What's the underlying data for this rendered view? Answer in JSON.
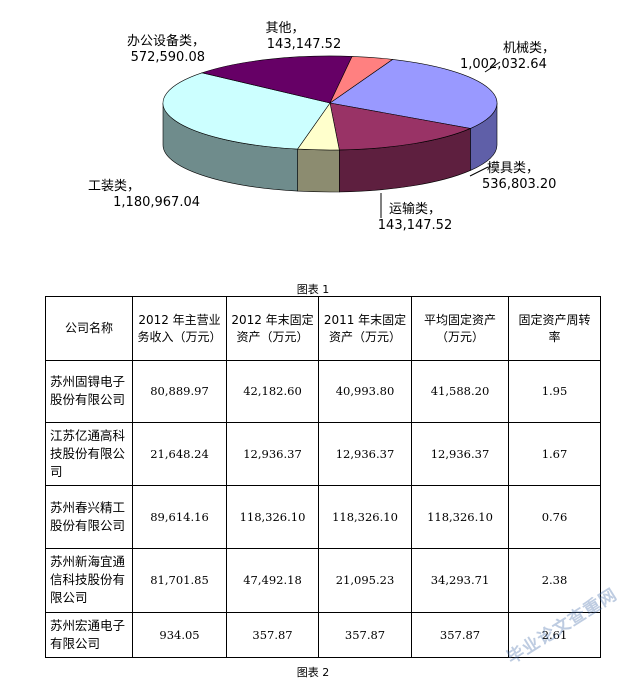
{
  "chart_data": {
    "type": "pie",
    "slices": [
      {
        "label": "机械类",
        "value_text": "1,002,032.64",
        "value": 1002032.64,
        "color": "#9999ff",
        "side": "#5f5fa8"
      },
      {
        "label": "模具类",
        "value_text": "536,803.20",
        "value": 536803.2,
        "color": "#993366",
        "side": "#5e1f3f"
      },
      {
        "label": "运输类",
        "value_text": "143,147.52",
        "value": 143147.52,
        "color": "#ffffcc",
        "side": "#8c8c70"
      },
      {
        "label": "工装类",
        "value_text": "1,180,967.04",
        "value": 1180967.04,
        "color": "#ccffff",
        "side": "#6f8c8c"
      },
      {
        "label": "办公设备类",
        "value_text": "572,590.08",
        "value": 572590.08,
        "color": "#660066",
        "side": "#3a003a"
      },
      {
        "label": "其他",
        "value_text": "143,147.52",
        "value": 143147.52,
        "color": "#ff8080",
        "side": "#8c4646"
      }
    ]
  },
  "captions": {
    "figure1": "图表 1",
    "figure2": "图表 2"
  },
  "table": {
    "headers": [
      "公司名称",
      "2012 年主营业务收入（万元）",
      "2012 年末固定资产（万元）",
      "2011 年末固定资产（万元）",
      "平均固定资产（万元）",
      "固定资产周转率"
    ],
    "rows": [
      [
        "苏州固锝电子股份有限公司",
        "80,889.97",
        "42,182.60",
        "40,993.80",
        "41,588.20",
        "1.95"
      ],
      [
        "江苏亿通高科技股份有限公司",
        "21,648.24",
        "12,936.37",
        "12,936.37",
        "12,936.37",
        "1.67"
      ],
      [
        "苏州春兴精工股份有限公司",
        "89,614.16",
        "118,326.10",
        "118,326.10",
        "118,326.10",
        "0.76"
      ],
      [
        "苏州新海宜通信科技股份有限公司",
        "81,701.85",
        "47,492.18",
        "21,095.23",
        "34,293.71",
        "2.38"
      ],
      [
        "苏州宏通电子有限公司",
        "934.05",
        "357.87",
        "357.87",
        "357.87",
        "2.61"
      ]
    ]
  },
  "watermark": "毕业论文查重网"
}
